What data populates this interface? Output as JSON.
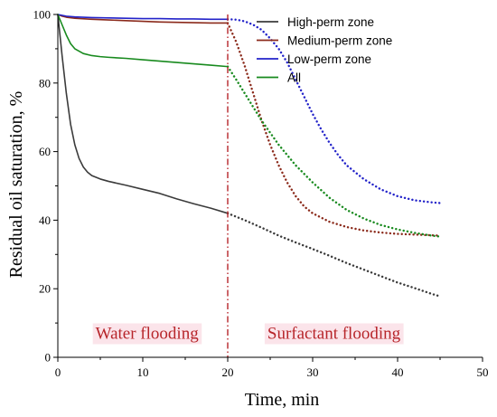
{
  "chart_data": {
    "type": "line",
    "xlabel": "Time, min",
    "ylabel": "Residual oil saturation,  %",
    "xlim": [
      0,
      50
    ],
    "ylim": [
      0,
      100
    ],
    "xticks": [
      0,
      10,
      20,
      30,
      40,
      50
    ],
    "yticks": [
      0,
      20,
      40,
      60,
      80,
      100
    ],
    "grid": false,
    "legend_position": "top-right",
    "phase_boundary_x": 20,
    "annotations": [
      {
        "id": "water",
        "text": "Water flooding",
        "x": 10.5,
        "y": 7
      },
      {
        "id": "surfactant",
        "text": "Surfactant flooding",
        "x": 32.5,
        "y": 7
      }
    ],
    "series": [
      {
        "name": "High-perm zone",
        "color": "#3b3b3b",
        "x": [
          0,
          0.5,
          1,
          1.5,
          2,
          2.5,
          3,
          3.5,
          4,
          5,
          6,
          8,
          10,
          12,
          14,
          16,
          18,
          20,
          22,
          24,
          26,
          28,
          30,
          32,
          34,
          36,
          38,
          40,
          42,
          44,
          45
        ],
        "y": [
          100,
          88,
          77,
          68,
          62,
          58,
          55.5,
          54,
          53,
          52,
          51.3,
          50.2,
          49,
          47.8,
          46.2,
          44.8,
          43.5,
          42,
          40,
          37.8,
          35.5,
          33.5,
          31.6,
          29.6,
          27.5,
          25.6,
          23.7,
          21.8,
          20.2,
          18.5,
          17.8
        ]
      },
      {
        "name": "Medium-perm zone",
        "color": "#8b2a1b",
        "x": [
          0,
          0.5,
          1,
          2,
          4,
          6,
          8,
          10,
          12,
          14,
          16,
          18,
          20,
          21,
          22,
          23,
          24,
          25,
          26,
          27,
          28,
          29,
          30,
          32,
          34,
          36,
          38,
          40,
          42,
          44,
          45
        ],
        "y": [
          100,
          99.5,
          99.2,
          98.9,
          98.6,
          98.4,
          98.2,
          98,
          97.8,
          97.7,
          97.6,
          97.5,
          97.5,
          92,
          85,
          77,
          69,
          62,
          56,
          51,
          47,
          44,
          42,
          39.5,
          38,
          37,
          36.4,
          36,
          35.8,
          35.6,
          35.5
        ]
      },
      {
        "name": "Low-perm zone",
        "color": "#2323c9",
        "x": [
          0,
          1,
          2,
          4,
          6,
          8,
          10,
          12,
          14,
          16,
          18,
          20,
          21,
          22,
          23,
          24,
          25,
          26,
          27,
          28,
          29,
          30,
          31,
          32,
          33,
          34,
          36,
          38,
          40,
          42,
          44,
          45
        ],
        "y": [
          100,
          99.5,
          99.3,
          99.1,
          99,
          98.9,
          98.8,
          98.8,
          98.7,
          98.7,
          98.6,
          98.6,
          98.5,
          98,
          97,
          95.5,
          93,
          90,
          86,
          81,
          76,
          71,
          66.5,
          62.5,
          59,
          56,
          52,
          49,
          47,
          45.8,
          45.2,
          45
        ]
      },
      {
        "name": "All",
        "color": "#188a1e",
        "x": [
          0,
          0.5,
          1,
          1.5,
          2,
          3,
          4,
          5,
          6,
          8,
          10,
          12,
          14,
          16,
          18,
          20,
          21,
          22,
          23,
          24,
          25,
          26,
          27,
          28,
          30,
          32,
          34,
          36,
          38,
          40,
          42,
          44,
          45
        ],
        "y": [
          100,
          97,
          94,
          91.5,
          90,
          88.6,
          88,
          87.7,
          87.5,
          87.2,
          86.8,
          86.4,
          86,
          85.6,
          85.2,
          84.8,
          81,
          77,
          73,
          69,
          65.5,
          62,
          59,
          56,
          51,
          46.5,
          43,
          40.5,
          38.6,
          37.3,
          36.3,
          35.5,
          35.2
        ]
      }
    ]
  }
}
